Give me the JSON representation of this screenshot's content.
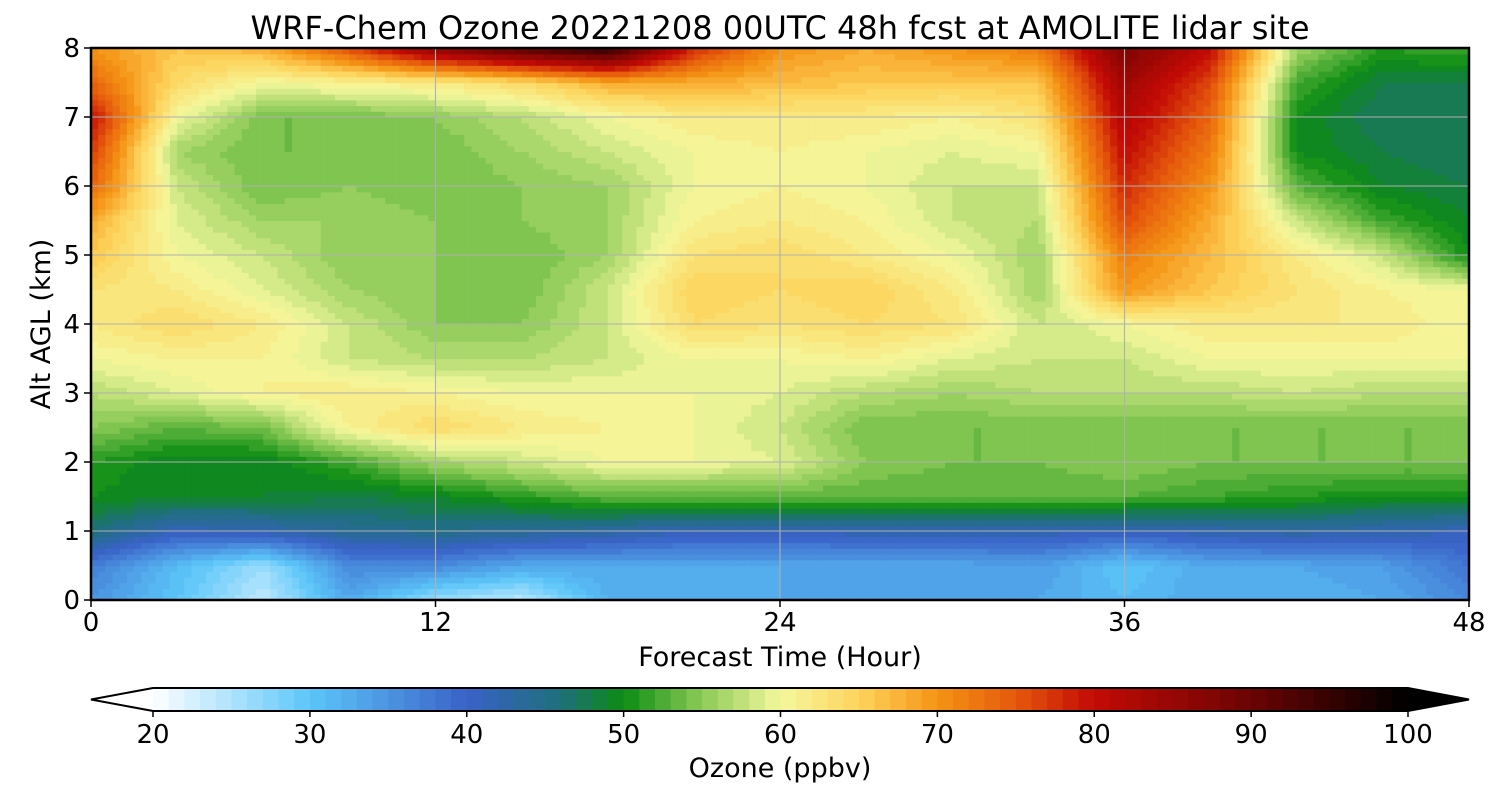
{
  "chart_data": {
    "type": "heatmap",
    "title": "WRF-Chem Ozone  20221208 00UTC 48h fcst at AMOLITE lidar site",
    "xlabel": "Forecast Time (Hour)",
    "ylabel": "Alt AGL (km)",
    "xlim": [
      0,
      48
    ],
    "ylim": [
      0,
      8
    ],
    "xticks": [
      "0",
      "12",
      "24",
      "36",
      "48"
    ],
    "yticks": [
      "0",
      "1",
      "2",
      "3",
      "4",
      "5",
      "6",
      "7",
      "8"
    ],
    "grid": true,
    "colorbar": {
      "label": "Ozone  (ppbv)",
      "range": [
        20,
        100
      ],
      "step": 1,
      "extend": "both",
      "ticks": [
        "20",
        "30",
        "40",
        "50",
        "60",
        "70",
        "80",
        "90",
        "100"
      ],
      "colorstops": [
        {
          "v": 20,
          "c": "#ffffff"
        },
        {
          "v": 30,
          "c": "#5cc6f9"
        },
        {
          "v": 40,
          "c": "#3a62c8"
        },
        {
          "v": 46,
          "c": "#1e6f7a"
        },
        {
          "v": 50,
          "c": "#0c8c12"
        },
        {
          "v": 55,
          "c": "#8ccb57"
        },
        {
          "v": 60,
          "c": "#f4f79d"
        },
        {
          "v": 65,
          "c": "#fdd45d"
        },
        {
          "v": 70,
          "c": "#f59415"
        },
        {
          "v": 75,
          "c": "#e5580c"
        },
        {
          "v": 80,
          "c": "#c30a05"
        },
        {
          "v": 90,
          "c": "#6b0404"
        },
        {
          "v": 100,
          "c": "#000000"
        }
      ],
      "under_color": "#ffffff",
      "over_color": "#000000"
    },
    "x": [
      0,
      3,
      6,
      9,
      12,
      15,
      18,
      21,
      24,
      27,
      30,
      33,
      36,
      39,
      42,
      45,
      48
    ],
    "y": [
      0,
      0.5,
      1,
      1.5,
      2,
      2.5,
      3,
      3.5,
      4,
      4.5,
      5,
      5.5,
      6,
      6.5,
      7,
      7.5,
      8
    ],
    "z": [
      [
        35,
        30,
        24,
        33,
        26,
        24,
        32,
        32,
        33,
        33,
        33,
        33,
        31,
        33,
        32,
        33,
        36
      ],
      [
        37,
        31,
        26,
        36,
        36,
        33,
        33,
        33,
        33,
        33,
        33,
        34,
        30,
        33,
        33,
        34,
        38
      ],
      [
        46,
        41,
        42,
        44,
        45,
        44,
        43,
        41,
        41,
        42,
        42,
        42,
        41,
        42,
        43,
        42,
        41
      ],
      [
        50,
        49,
        49,
        48,
        49,
        51,
        53,
        53,
        53,
        53,
        53,
        53,
        53,
        52,
        51,
        50,
        50
      ],
      [
        51,
        49,
        49,
        52,
        56,
        58,
        60,
        60,
        59,
        55,
        54,
        54,
        55,
        54,
        54,
        54,
        54
      ],
      [
        55,
        53,
        54,
        61,
        64,
        62,
        61,
        60,
        58,
        54,
        54,
        54,
        54,
        54,
        54,
        54,
        54
      ],
      [
        57,
        59,
        61,
        62,
        61,
        60,
        60,
        60,
        59,
        57,
        56,
        57,
        57,
        57,
        58,
        57,
        57
      ],
      [
        60,
        61,
        61,
        58,
        57,
        57,
        58,
        60,
        60,
        61,
        59,
        58,
        58,
        60,
        60,
        60,
        60
      ],
      [
        62,
        64,
        62,
        58,
        55,
        55,
        58,
        64,
        63,
        64,
        63,
        58,
        60,
        62,
        62,
        62,
        60
      ],
      [
        63,
        62,
        59,
        56,
        55,
        54,
        58,
        65,
        64,
        65,
        62,
        56,
        70,
        66,
        63,
        61,
        60
      ],
      [
        66,
        60,
        58,
        55,
        55,
        54,
        56,
        63,
        64,
        62,
        60,
        56,
        72,
        67,
        62,
        58,
        50
      ],
      [
        68,
        59,
        56,
        56,
        55,
        55,
        56,
        61,
        62,
        61,
        58,
        57,
        76,
        68,
        58,
        52,
        49
      ],
      [
        74,
        58,
        54,
        55,
        54,
        55,
        56,
        60,
        61,
        60,
        58,
        58,
        78,
        70,
        53,
        49,
        48
      ],
      [
        77,
        56,
        54,
        54,
        54,
        56,
        58,
        60,
        61,
        60,
        59,
        60,
        80,
        72,
        50,
        48,
        47
      ],
      [
        80,
        60,
        54,
        54,
        55,
        57,
        60,
        62,
        62,
        62,
        61,
        63,
        82,
        74,
        50,
        47,
        47
      ],
      [
        74,
        64,
        60,
        61,
        62,
        64,
        68,
        68,
        67,
        66,
        66,
        66,
        84,
        76,
        52,
        48,
        48
      ],
      [
        70,
        66,
        68,
        76,
        86,
        92,
        96,
        78,
        70,
        68,
        70,
        72,
        88,
        80,
        56,
        51,
        52
      ]
    ]
  }
}
